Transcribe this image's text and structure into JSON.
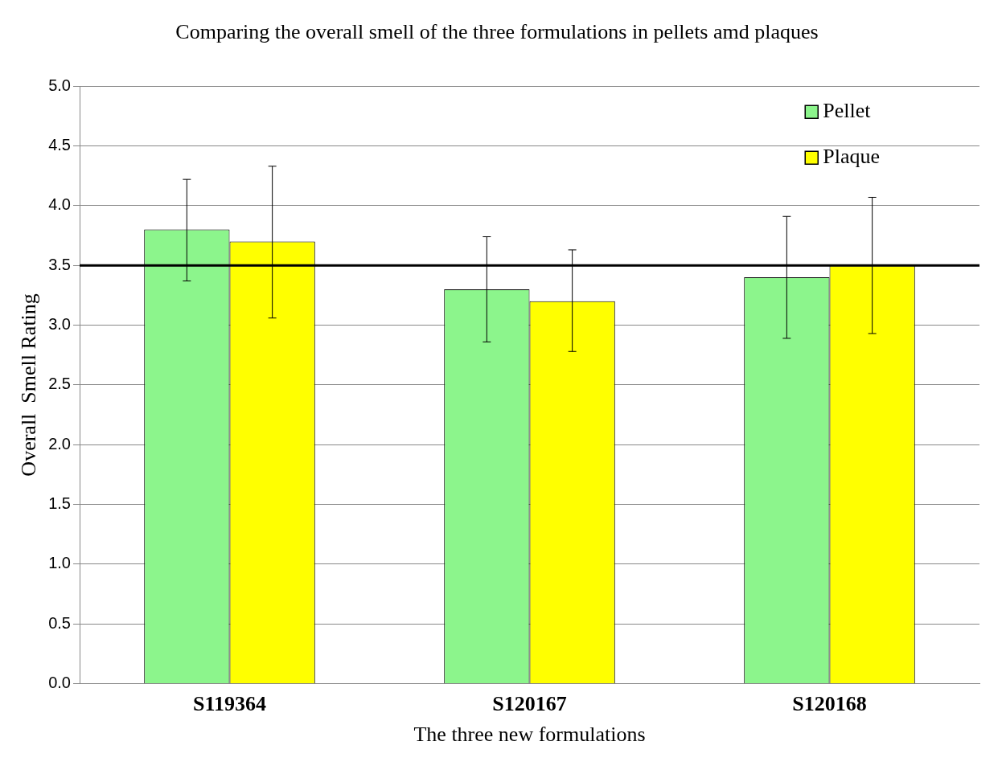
{
  "chart_data": {
    "type": "bar",
    "title": "Comparing the overall smell of the three formulations in pellets amd plaques",
    "xlabel": "The three new formulations",
    "ylabel": "Overall  Smell Rating",
    "categories": [
      "S119364",
      "S120167",
      "S120168"
    ],
    "series": [
      {
        "name": "Pellet",
        "color": "#8cf58c",
        "values": [
          3.8,
          3.3,
          3.4
        ],
        "errors": [
          [
            3.37,
            4.22
          ],
          [
            2.86,
            3.74
          ],
          [
            2.89,
            3.91
          ]
        ]
      },
      {
        "name": "Plaque",
        "color": "#ffff00",
        "values": [
          3.7,
          3.2,
          3.5
        ],
        "errors": [
          [
            3.06,
            4.33
          ],
          [
            2.78,
            3.63
          ],
          [
            2.93,
            4.07
          ]
        ]
      }
    ],
    "ylim": [
      0,
      5
    ],
    "yticks": [
      {
        "value": 0,
        "label": "0.0"
      },
      {
        "value": 0.5,
        "label": "0.5"
      },
      {
        "value": 1,
        "label": "1.0"
      },
      {
        "value": 1.5,
        "label": "1.5"
      },
      {
        "value": 2,
        "label": "2.0"
      },
      {
        "value": 2.5,
        "label": "2.5"
      },
      {
        "value": 3,
        "label": "3.0"
      },
      {
        "value": 3.5,
        "label": "3.5"
      },
      {
        "value": 4,
        "label": "4.0"
      },
      {
        "value": 4.5,
        "label": "4.5"
      },
      {
        "value": 5,
        "label": "5.0"
      }
    ],
    "ref_lines": [
      {
        "axis": "y",
        "value": 3.5,
        "color": "#000000"
      }
    ],
    "grid": "y",
    "legend": "top right"
  }
}
